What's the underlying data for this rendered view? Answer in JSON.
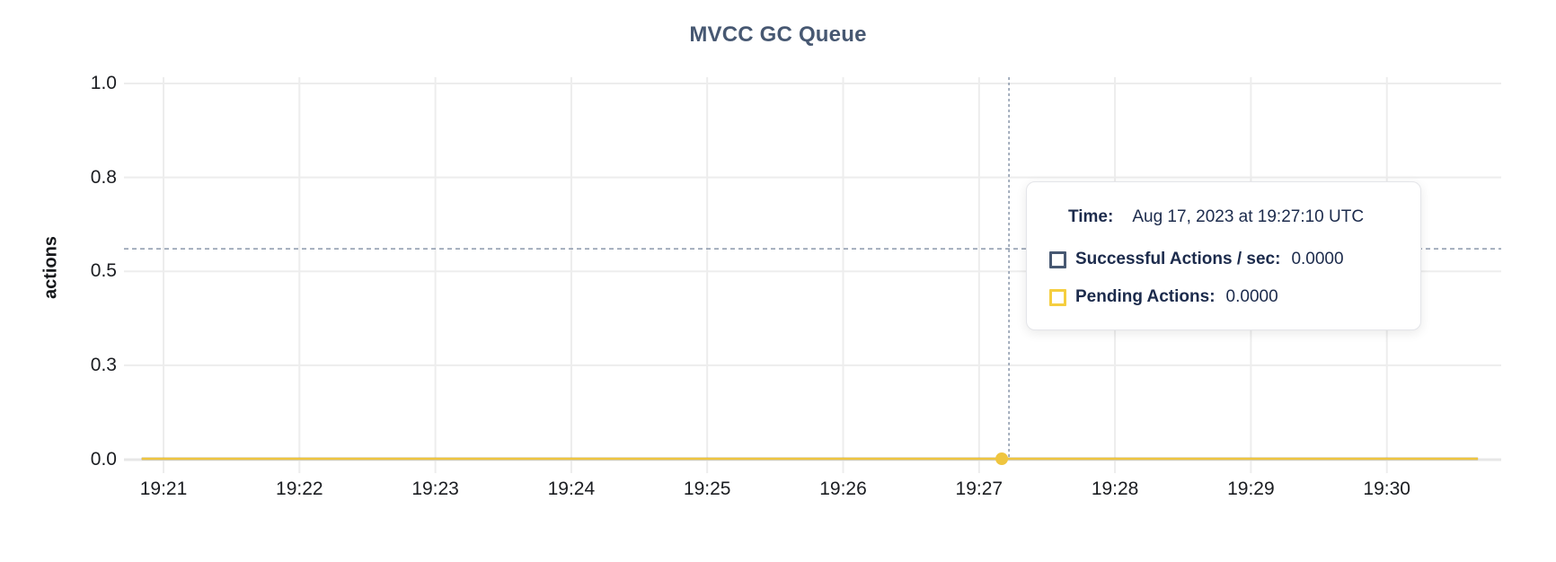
{
  "colors": {
    "title": "#475872",
    "tooltip_text": "#1c2b4c",
    "tick_text": "#1b1d21",
    "grid": "#ededed",
    "axis_baseline": "#e7e7e7",
    "crosshair": "#8a97ab",
    "series_successful": "#475872",
    "series_pending": "#efc53f"
  },
  "chart_data": {
    "type": "line",
    "title": "MVCC GC Queue",
    "xlabel": "",
    "ylabel": "actions",
    "grid": true,
    "legend_position": "tooltip-only",
    "x_ticks": [
      "19:21",
      "19:22",
      "19:23",
      "19:24",
      "19:25",
      "19:26",
      "19:27",
      "19:28",
      "19:29",
      "19:30"
    ],
    "x_minutes_per_tick": 1,
    "y_ticks": [
      {
        "label": "0.0",
        "value": 0
      },
      {
        "label": "0.3",
        "value": 0.25
      },
      {
        "label": "0.5",
        "value": 0.5
      },
      {
        "label": "0.8",
        "value": 0.75
      },
      {
        "label": "1.0",
        "value": 1
      }
    ],
    "ylim": [
      0,
      1
    ],
    "series": [
      {
        "name": "Successful Actions / sec",
        "color": "#475872",
        "constant_value": 0
      },
      {
        "name": "Pending Actions",
        "color": "#efc53f",
        "constant_value": 0
      }
    ],
    "data_extent_min_from_first_tick": {
      "start": -0.16,
      "end": 9.67
    },
    "hover": {
      "time": "19:27:10",
      "point_series": "Pending Actions",
      "point_value": 0,
      "point_min_from_first_tick": 6.167,
      "crosshair_min_from_first_tick": 6.22,
      "crosshair_y_value": 0.56
    }
  },
  "tooltip": {
    "time_label": "Time:",
    "time_value": "Aug 17, 2023 at 19:27:10 UTC",
    "rows": [
      {
        "label": "Successful Actions / sec:",
        "value": "0.0000",
        "color": "#475872"
      },
      {
        "label": "Pending Actions:",
        "value": "0.0000",
        "color": "#f5ce3f"
      }
    ]
  }
}
